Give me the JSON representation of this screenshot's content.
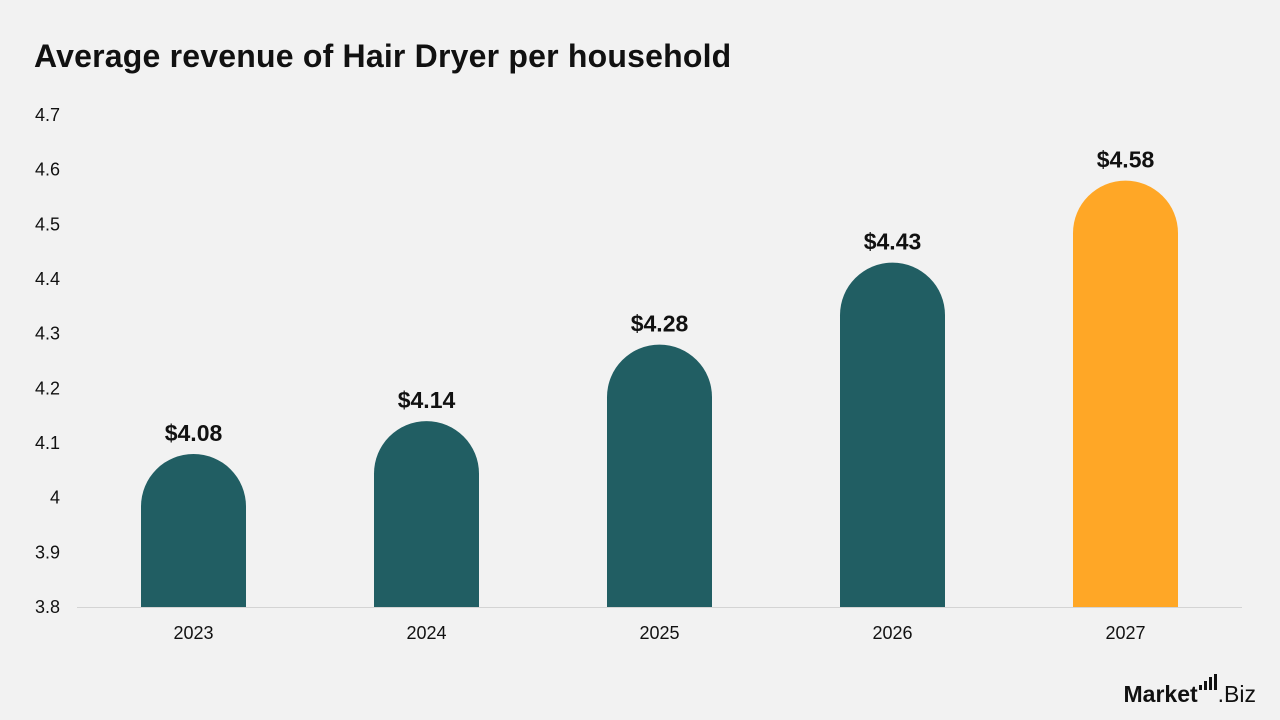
{
  "chart_data": {
    "type": "bar",
    "title": "Average revenue of Hair Dryer per household",
    "categories": [
      "2023",
      "2024",
      "2025",
      "2026",
      "2027"
    ],
    "values": [
      4.08,
      4.14,
      4.28,
      4.43,
      4.58
    ],
    "data_labels": [
      "$4.08",
      "$4.14",
      "$4.28",
      "$4.43",
      "$4.58"
    ],
    "ylim": [
      3.8,
      4.7
    ],
    "yticks": [
      "3.8",
      "3.9",
      "4",
      "4.1",
      "4.2",
      "4.3",
      "4.4",
      "4.5",
      "4.6",
      "4.7"
    ],
    "grid": false,
    "legend": "none",
    "colors": {
      "default_bar": "#215e63",
      "highlight_bar": "#ffa726",
      "background": "#f2f2f2",
      "text": "#111111"
    },
    "highlight_category": "2027"
  },
  "branding": {
    "name": "Market",
    "suffix": ".Biz",
    "icon": "bar-chart-icon"
  }
}
